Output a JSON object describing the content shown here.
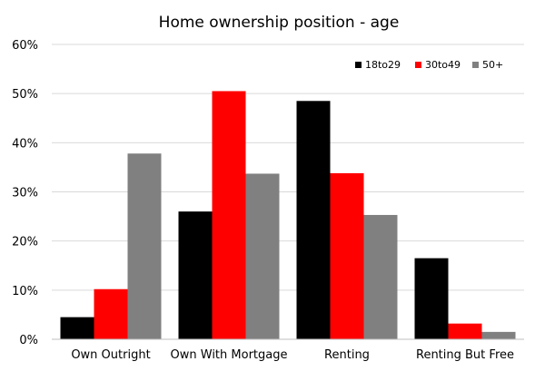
{
  "chart_data": {
    "type": "bar",
    "title": "Home ownership position - age",
    "categories": [
      "Own Outright",
      "Own With Mortgage",
      "Renting",
      "Renting But Free"
    ],
    "series": [
      {
        "name": "18to29",
        "color": "#000000",
        "values": [
          4.5,
          26,
          48.5,
          16.5
        ]
      },
      {
        "name": "30to49",
        "color": "#ff0000",
        "values": [
          10.2,
          50.5,
          33.8,
          3.2
        ]
      },
      {
        "name": "50+",
        "color": "#808080",
        "values": [
          37.8,
          33.7,
          25.3,
          1.5
        ]
      }
    ],
    "ylim": [
      0,
      60
    ],
    "yticks": [
      "0%",
      "10%",
      "20%",
      "30%",
      "40%",
      "50%",
      "60%"
    ],
    "grid": true,
    "legend_position": "top-right"
  }
}
